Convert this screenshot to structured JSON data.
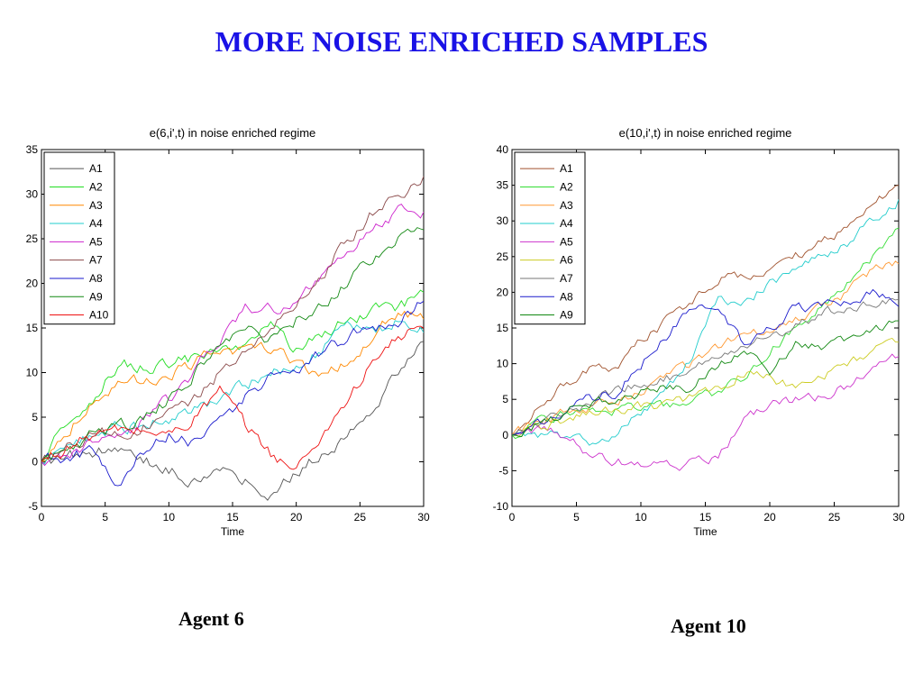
{
  "slide": {
    "title": "MORE NOISE ENRICHED SAMPLES",
    "caption_left": "Agent 6",
    "caption_right": "Agent 10"
  },
  "chart_data": [
    {
      "type": "line",
      "title": "e(6,i',t) in noise enriched regime",
      "xlabel": "Time",
      "ylabel": "",
      "xlim": [
        0,
        30
      ],
      "ylim": [
        -5,
        35
      ],
      "xticks": [
        0,
        5,
        10,
        15,
        20,
        25,
        30
      ],
      "yticks": [
        -5,
        0,
        5,
        10,
        15,
        20,
        25,
        30,
        35
      ],
      "grid": false,
      "legend": "top-left",
      "x": [
        0,
        2,
        4,
        6,
        8,
        10,
        12,
        14,
        16,
        18,
        20,
        22,
        24,
        26,
        28,
        30
      ],
      "series": [
        {
          "name": "A1",
          "color": "#555555",
          "values": [
            0,
            0.5,
            1,
            1.5,
            0.5,
            -1,
            -2,
            -1,
            -2,
            -3.5,
            -1,
            1,
            3,
            6,
            10,
            13.5
          ]
        },
        {
          "name": "A2",
          "color": "#22dd22",
          "values": [
            0,
            4,
            7,
            11,
            10.5,
            11,
            11.5,
            12,
            13.5,
            15,
            12.5,
            14,
            16,
            17,
            17,
            19
          ]
        },
        {
          "name": "A3",
          "color": "#ff8800",
          "values": [
            0,
            3.5,
            7,
            8.5,
            9,
            10,
            11,
            12.5,
            12,
            13,
            11,
            10,
            11,
            14,
            17,
            16
          ]
        },
        {
          "name": "A4",
          "color": "#22cccc",
          "values": [
            0,
            1.5,
            3,
            4,
            4,
            5,
            6,
            7,
            8.5,
            10,
            11,
            12.5,
            16,
            14,
            16,
            14.5
          ]
        },
        {
          "name": "A5",
          "color": "#cc22cc",
          "values": [
            0,
            1,
            2,
            3,
            4.5,
            7,
            10,
            14,
            17,
            17,
            18,
            21,
            24,
            26,
            28,
            28
          ]
        },
        {
          "name": "A7",
          "color": "#8b4a4a",
          "values": [
            0,
            1.5,
            3,
            3.5,
            4,
            5,
            7,
            10,
            12,
            15,
            18,
            21,
            25,
            28,
            29.5,
            32
          ]
        },
        {
          "name": "A8",
          "color": "#1a1acc",
          "values": [
            0,
            0.5,
            1,
            -2,
            1,
            3,
            2,
            4,
            7,
            9.5,
            10.5,
            12,
            14,
            15,
            15.5,
            18
          ]
        },
        {
          "name": "A9",
          "color": "#118811",
          "values": [
            0,
            1.5,
            3,
            4,
            4.5,
            7,
            10,
            13,
            14.5,
            14,
            16,
            18,
            20,
            23,
            25,
            26
          ]
        },
        {
          "name": "A10",
          "color": "#ee1111",
          "values": [
            0,
            1.5,
            3,
            3.5,
            3.5,
            3,
            5,
            8,
            4,
            1,
            -1,
            3,
            7,
            11,
            14,
            15
          ]
        }
      ]
    },
    {
      "type": "line",
      "title": "e(10,i',t) in noise enriched regime",
      "xlabel": "Time",
      "ylabel": "",
      "xlim": [
        0,
        30
      ],
      "ylim": [
        -10,
        40
      ],
      "xticks": [
        0,
        5,
        10,
        15,
        20,
        25,
        30
      ],
      "yticks": [
        -10,
        -5,
        0,
        5,
        10,
        15,
        20,
        25,
        30,
        35,
        40
      ],
      "grid": false,
      "legend": "top-left",
      "x": [
        0,
        2,
        4,
        6,
        8,
        10,
        12,
        14,
        16,
        18,
        20,
        22,
        24,
        26,
        28,
        30
      ],
      "series": [
        {
          "name": "A1",
          "color": "#a0522d",
          "values": [
            0,
            4,
            7,
            9,
            9,
            13,
            16,
            19,
            22,
            22.5,
            23.5,
            25,
            27,
            29,
            33,
            35
          ]
        },
        {
          "name": "A2",
          "color": "#33dd33",
          "values": [
            0,
            1.5,
            3,
            3.5,
            3.5,
            4,
            4,
            5,
            6,
            8,
            12,
            15,
            18,
            21,
            25,
            29
          ]
        },
        {
          "name": "A3",
          "color": "#ff9933",
          "values": [
            0,
            1.5,
            3,
            4,
            5,
            6,
            8,
            10,
            12,
            14,
            15,
            16,
            18,
            20,
            23,
            24
          ]
        },
        {
          "name": "A4",
          "color": "#22cccc",
          "values": [
            0,
            -0.5,
            0,
            -1,
            0,
            3,
            6,
            11,
            19,
            19,
            21,
            23,
            25,
            27,
            30,
            33
          ]
        },
        {
          "name": "A5",
          "color": "#cc33cc",
          "values": [
            0,
            0.5,
            0,
            -3,
            -3.5,
            -4,
            -4.5,
            -4,
            -3,
            2,
            4,
            5,
            5.5,
            7,
            9,
            11
          ]
        },
        {
          "name": "A6",
          "color": "#cccc22",
          "values": [
            0,
            1,
            2,
            3,
            3.5,
            4,
            4,
            5.5,
            6,
            9,
            8,
            6.5,
            8,
            10,
            12,
            13
          ]
        },
        {
          "name": "A7",
          "color": "#777777",
          "values": [
            0,
            1.5,
            3,
            4.5,
            6,
            7.5,
            8,
            9,
            11,
            13,
            14,
            15.5,
            17,
            18,
            18.5,
            19
          ]
        },
        {
          "name": "A8",
          "color": "#1a1acc",
          "values": [
            0,
            1.5,
            3,
            5,
            6,
            10,
            14,
            18,
            17,
            13,
            15,
            18,
            18,
            19,
            20,
            18
          ]
        },
        {
          "name": "A9",
          "color": "#118811",
          "values": [
            0,
            1.5,
            3,
            4.5,
            5,
            6,
            7,
            6.5,
            10,
            12,
            9,
            13,
            12,
            13,
            15,
            16
          ]
        }
      ]
    }
  ]
}
